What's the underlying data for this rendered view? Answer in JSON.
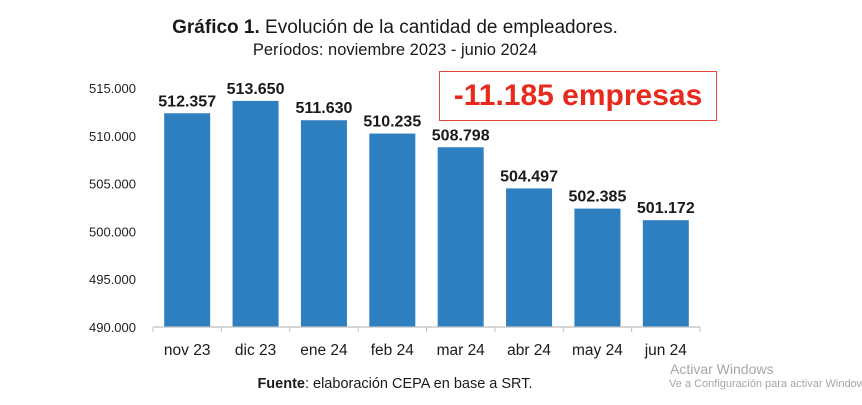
{
  "header": {
    "title_bold": "Gráfico 1.",
    "title_rest": " Evolución de la cantidad de empleadores.",
    "subtitle": "Períodos: noviembre 2023 - junio 2024"
  },
  "annotation": {
    "text": "-11.185 empresas",
    "color": "#e8291c"
  },
  "footer": {
    "source_bold": "Fuente",
    "source_rest": ": elaboración CEPA en base a SRT."
  },
  "watermark": {
    "title": "Activar Windows",
    "subtitle": "Ve a Configuración para activar Windows"
  },
  "colors": {
    "bar": "#2e7fc0",
    "axis": "#bfbfbf"
  },
  "chart_data": {
    "type": "bar",
    "categories": [
      "nov 23",
      "dic 23",
      "ene 24",
      "feb 24",
      "mar 24",
      "abr 24",
      "may 24",
      "jun 24"
    ],
    "values": [
      512357,
      513650,
      511630,
      510235,
      508798,
      504497,
      502385,
      501172
    ],
    "data_labels": [
      "512.357",
      "513.650",
      "511.630",
      "510.235",
      "508.798",
      "504.497",
      "502.385",
      "501.172"
    ],
    "ylim": [
      490000,
      515000
    ],
    "yticks": [
      490000,
      495000,
      500000,
      505000,
      510000,
      515000
    ],
    "ytick_labels": [
      "490.000",
      "495.000",
      "500.000",
      "505.000",
      "510.000",
      "515.000"
    ],
    "grid": false,
    "legend": "none"
  }
}
